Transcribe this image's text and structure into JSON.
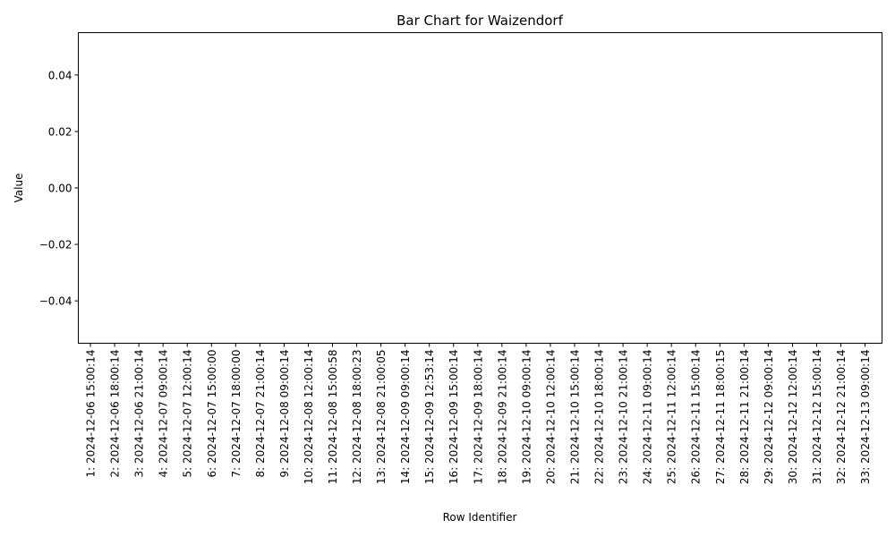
{
  "chart_data": {
    "type": "bar",
    "title": "Bar Chart for Waizendorf",
    "xlabel": "Row Identifier",
    "ylabel": "Value",
    "ylim": [
      -0.055,
      0.055
    ],
    "yticks": [
      0.04,
      0.02,
      0.0,
      -0.02,
      -0.04
    ],
    "ytick_labels": [
      "0.04",
      "0.02",
      "0.00",
      "−0.02",
      "−0.04"
    ],
    "grid": false,
    "categories": [
      "1: 2024-12-06 15:00:14",
      "2: 2024-12-06 18:00:14",
      "3: 2024-12-06 21:00:14",
      "4: 2024-12-07 09:00:14",
      "5: 2024-12-07 12:00:14",
      "6: 2024-12-07 15:00:00",
      "7: 2024-12-07 18:00:00",
      "8: 2024-12-07 21:00:14",
      "9: 2024-12-08 09:00:14",
      "10: 2024-12-08 12:00:14",
      "11: 2024-12-08 15:00:58",
      "12: 2024-12-08 18:00:23",
      "13: 2024-12-08 21:00:05",
      "14: 2024-12-09 09:00:14",
      "15: 2024-12-09 12:53:14",
      "16: 2024-12-09 15:00:14",
      "17: 2024-12-09 18:00:14",
      "18: 2024-12-09 21:00:14",
      "19: 2024-12-10 09:00:14",
      "20: 2024-12-10 12:00:14",
      "21: 2024-12-10 15:00:14",
      "22: 2024-12-10 18:00:14",
      "23: 2024-12-10 21:00:14",
      "24: 2024-12-11 09:00:14",
      "25: 2024-12-11 12:00:14",
      "26: 2024-12-11 15:00:14",
      "27: 2024-12-11 18:00:15",
      "28: 2024-12-11 21:00:14",
      "29: 2024-12-12 09:00:14",
      "30: 2024-12-12 12:00:14",
      "31: 2024-12-12 15:00:14",
      "32: 2024-12-12 21:00:14",
      "33: 2024-12-13 09:00:14"
    ],
    "values": [
      0,
      0,
      0,
      0,
      0,
      0,
      0,
      0,
      0,
      0,
      0,
      0,
      0,
      0,
      0,
      0,
      0,
      0,
      0,
      0,
      0,
      0,
      0,
      0,
      0,
      0,
      0,
      0,
      0,
      0,
      0,
      0,
      0
    ],
    "bar_color": "#1f77b4"
  }
}
